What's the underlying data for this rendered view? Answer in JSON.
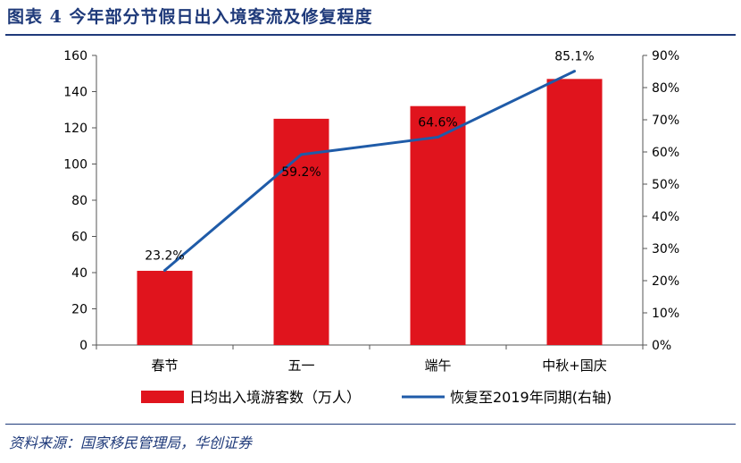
{
  "figure": {
    "title": "图表 4 今年部分节假日出入境客流及修复程度",
    "source": "资料来源：国家移民管理局，华创证券"
  },
  "chart_data": {
    "type": "bar",
    "categories": [
      "春节",
      "五一",
      "端午",
      "中秋+国庆"
    ],
    "series": [
      {
        "name": "日均出入境游客数（万人）",
        "type": "bar",
        "axis": "left",
        "values": [
          41,
          125,
          132,
          147
        ],
        "color": "#e0141d"
      },
      {
        "name": "恢复至2019年同期(右轴)",
        "type": "line",
        "axis": "right",
        "values": [
          23.2,
          59.2,
          64.6,
          85.1
        ],
        "labels": [
          "23.2%",
          "59.2%",
          "64.6%",
          "85.1%"
        ],
        "color": "#1f5ba8"
      }
    ],
    "ylim_left": [
      0,
      160
    ],
    "yticks_left": [
      "0",
      "20",
      "40",
      "60",
      "80",
      "100",
      "120",
      "140",
      "160"
    ],
    "ylim_right": [
      0,
      90
    ],
    "yticks_right": [
      "0%",
      "10%",
      "20%",
      "30%",
      "40%",
      "50%",
      "60%",
      "70%",
      "80%",
      "90%"
    ],
    "grid": false,
    "legend_position": "bottom"
  }
}
